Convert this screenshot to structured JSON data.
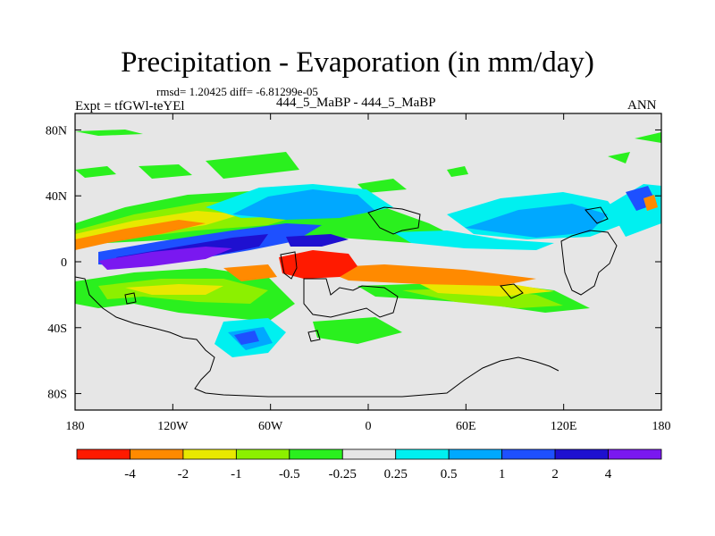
{
  "title": "Precipitation - Evaporation (in mm/day)",
  "subtitle": "rmsd= 1.20425 diff= -6.81299e-05",
  "expt_label": "Expt = tfGWl-teYEl",
  "center_label": "444_5_MaBP - 444_5_MaBP",
  "season_label": "ANN",
  "lat_ticks": [
    {
      "label": "80N",
      "value": 80
    },
    {
      "label": "40N",
      "value": 40
    },
    {
      "label": "0",
      "value": 0
    },
    {
      "label": "40S",
      "value": -40
    },
    {
      "label": "80S",
      "value": -80
    }
  ],
  "lon_ticks": [
    {
      "label": "180",
      "value": -180
    },
    {
      "label": "120W",
      "value": -120
    },
    {
      "label": "60W",
      "value": -60
    },
    {
      "label": "0",
      "value": 0
    },
    {
      "label": "60E",
      "value": 60
    },
    {
      "label": "120E",
      "value": 120
    },
    {
      "label": "180",
      "value": 180
    }
  ],
  "colorbar": {
    "colors": [
      "#ff1a00",
      "#ff8a00",
      "#e8e800",
      "#8cf000",
      "#2af01e",
      "#e6e6e6",
      "#00f0f0",
      "#00a8ff",
      "#1e50ff",
      "#1e10d0",
      "#7a18f0"
    ],
    "labels": [
      "-4",
      "-2",
      "-1",
      "-0.5",
      "-0.25",
      "0.25",
      "0.5",
      "1",
      "2",
      "4"
    ]
  },
  "colors": {
    "background": "#e6e6e6",
    "land_outline": "#000000"
  }
}
